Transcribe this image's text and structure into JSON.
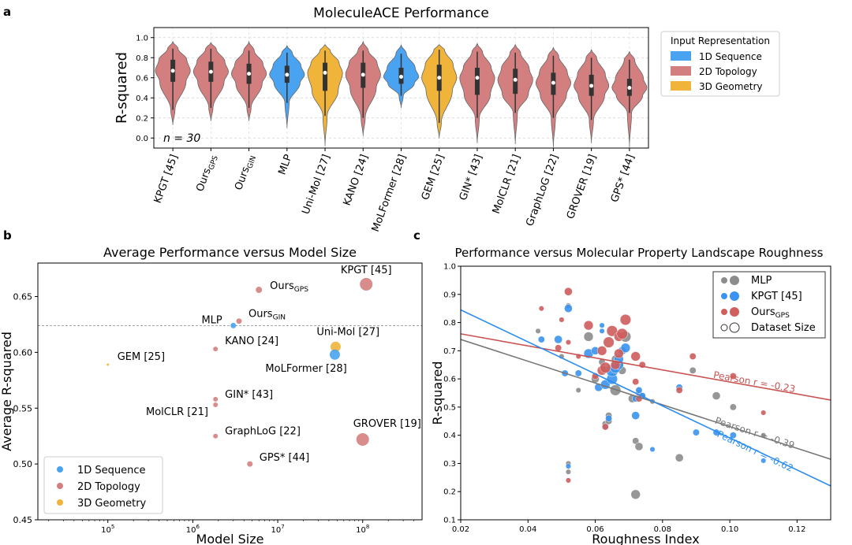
{
  "chart_data": [
    {
      "panel": "a",
      "type": "violin",
      "title": "MoleculeACE Performance",
      "ylabel": "R-squared",
      "ylim": [
        -0.1,
        1.1
      ],
      "yticks": [
        "0.0",
        "0.2",
        "0.4",
        "0.6",
        "0.8",
        "1.0"
      ],
      "annotation": "n = 30",
      "legend_title": "Input Representation",
      "legend": [
        {
          "label": "1D Sequence",
          "color": "#4aa3f0"
        },
        {
          "label": "2D Topology",
          "color": "#d47f7f"
        },
        {
          "label": "3D Geometry",
          "color": "#f0b43a"
        }
      ],
      "categories": [
        {
          "label": "KPGT [45]",
          "group": "2D Topology",
          "median": 0.67,
          "q1": 0.56,
          "q3": 0.78,
          "lo": 0.28,
          "hi": 0.89,
          "min": 0.13,
          "max": 0.96
        },
        {
          "label": "OursGPS",
          "base": "Ours",
          "sub": "GPS",
          "group": "2D Topology",
          "median": 0.66,
          "q1": 0.56,
          "q3": 0.76,
          "lo": 0.3,
          "hi": 0.89,
          "min": 0.17,
          "max": 0.95
        },
        {
          "label": "OursGIN",
          "base": "Ours",
          "sub": "GIN",
          "group": "2D Topology",
          "median": 0.64,
          "q1": 0.54,
          "q3": 0.74,
          "lo": 0.3,
          "hi": 0.87,
          "min": 0.17,
          "max": 0.96
        },
        {
          "label": "MLP",
          "group": "1D Sequence",
          "median": 0.63,
          "q1": 0.55,
          "q3": 0.72,
          "lo": 0.35,
          "hi": 0.85,
          "min": 0.1,
          "max": 0.92
        },
        {
          "label": "Uni-Mol [27]",
          "group": "3D Geometry",
          "median": 0.65,
          "q1": 0.47,
          "q3": 0.75,
          "lo": 0.22,
          "hi": 0.87,
          "min": -0.08,
          "max": 0.93
        },
        {
          "label": "KANO [24]",
          "group": "2D Topology",
          "median": 0.63,
          "q1": 0.5,
          "q3": 0.75,
          "lo": 0.2,
          "hi": 0.87,
          "min": 0.02,
          "max": 0.96
        },
        {
          "label": "MoLFormer [28]",
          "group": "1D Sequence",
          "median": 0.61,
          "q1": 0.54,
          "q3": 0.7,
          "lo": 0.42,
          "hi": 0.84,
          "min": 0.3,
          "max": 0.93
        },
        {
          "label": "GEM [25]",
          "group": "3D Geometry",
          "median": 0.6,
          "q1": 0.47,
          "q3": 0.73,
          "lo": 0.15,
          "hi": 0.88,
          "min": 0.0,
          "max": 0.93
        },
        {
          "label": "GIN* [43]",
          "group": "2D Topology",
          "median": 0.6,
          "q1": 0.43,
          "q3": 0.7,
          "lo": 0.2,
          "hi": 0.86,
          "min": -0.05,
          "max": 0.94
        },
        {
          "label": "MolCLR [21]",
          "group": "2D Topology",
          "median": 0.58,
          "q1": 0.44,
          "q3": 0.69,
          "lo": 0.25,
          "hi": 0.85,
          "min": -0.06,
          "max": 0.93
        },
        {
          "label": "GraphLoG [22]",
          "group": "2D Topology",
          "median": 0.55,
          "q1": 0.43,
          "q3": 0.65,
          "lo": 0.2,
          "hi": 0.82,
          "min": -0.09,
          "max": 0.9
        },
        {
          "label": "GROVER [19]",
          "group": "2D Topology",
          "median": 0.52,
          "q1": 0.42,
          "q3": 0.63,
          "lo": 0.18,
          "hi": 0.8,
          "min": -0.05,
          "max": 0.88
        },
        {
          "label": "GPS* [44]",
          "group": "2D Topology",
          "median": 0.5,
          "q1": 0.42,
          "q3": 0.59,
          "lo": 0.25,
          "hi": 0.78,
          "min": -0.09,
          "max": 0.86
        }
      ]
    },
    {
      "panel": "b",
      "type": "scatter",
      "title": "Average Performance versus Model Size",
      "xlabel": "Model Size",
      "ylabel": "Average R-squared",
      "xscale": "log",
      "xlim": [
        15000,
        500000000
      ],
      "ylim": [
        0.45,
        0.68
      ],
      "xticks": [
        {
          "base": "10",
          "exp": "5",
          "v": 100000
        },
        {
          "base": "10",
          "exp": "6",
          "v": 1000000
        },
        {
          "base": "10",
          "exp": "7",
          "v": 10000000
        },
        {
          "base": "10",
          "exp": "8",
          "v": 100000000
        }
      ],
      "yticks": [
        "0.45",
        "0.50",
        "0.55",
        "0.60",
        "0.65"
      ],
      "reference_line": 0.624,
      "legend": [
        {
          "label": "1D Sequence",
          "color": "#4aa3f0"
        },
        {
          "label": "2D Topology",
          "color": "#d47f7f"
        },
        {
          "label": "3D Geometry",
          "color": "#f0b43a"
        }
      ],
      "points": [
        {
          "label": "KPGT [45]",
          "size": 110000000,
          "r2": 0.661,
          "group": "2D Topology",
          "r": 8
        },
        {
          "label": "OursGPS",
          "base": "Ours",
          "sub": "GPS",
          "size": 6000000,
          "r2": 0.656,
          "group": "2D Topology",
          "r": 4
        },
        {
          "label": "OursGIN",
          "base": "Ours",
          "sub": "GIN",
          "size": 3500000,
          "r2": 0.628,
          "group": "2D Topology",
          "r": 3.5
        },
        {
          "label": "MLP",
          "size": 3000000,
          "r2": 0.624,
          "group": "1D Sequence",
          "r": 3.5
        },
        {
          "label": "Uni-Mol [27]",
          "size": 48000000,
          "r2": 0.605,
          "group": "3D Geometry",
          "r": 6.5
        },
        {
          "label": "MoLFormer [28]",
          "size": 47000000,
          "r2": 0.598,
          "group": "1D Sequence",
          "r": 6.5
        },
        {
          "label": "KANO [24]",
          "size": 1850000,
          "r2": 0.603,
          "group": "2D Topology",
          "r": 3
        },
        {
          "label": "GEM [25]",
          "size": 100000,
          "r2": 0.589,
          "group": "3D Geometry",
          "r": 1.5
        },
        {
          "label": "GIN* [43]",
          "size": 1850000,
          "r2": 0.558,
          "group": "2D Topology",
          "r": 3
        },
        {
          "label": "MolCLR [21]",
          "size": 1850000,
          "r2": 0.553,
          "group": "2D Topology",
          "r": 3
        },
        {
          "label": "GraphLoG [22]",
          "size": 1850000,
          "r2": 0.525,
          "group": "2D Topology",
          "r": 3
        },
        {
          "label": "GROVER [19]",
          "size": 100000000,
          "r2": 0.522,
          "group": "2D Topology",
          "r": 8
        },
        {
          "label": "GPS* [44]",
          "size": 4700000,
          "r2": 0.5,
          "group": "2D Topology",
          "r": 3.5
        }
      ]
    },
    {
      "panel": "c",
      "type": "scatter",
      "title": "Performance versus Molecular Property Landscape Roughness",
      "xlabel": "Roughness Index",
      "ylabel": "R-squared",
      "xlim": [
        0.02,
        0.13
      ],
      "ylim": [
        0.1,
        1.0
      ],
      "xticks": [
        "0.02",
        "0.04",
        "0.06",
        "0.08",
        "0.10",
        "0.12"
      ],
      "yticks": [
        "0.1",
        "0.2",
        "0.3",
        "0.4",
        "0.5",
        "0.6",
        "0.7",
        "0.8",
        "0.9",
        "1.0"
      ],
      "legend": [
        {
          "label": "MLP",
          "color": "#8c8c8c"
        },
        {
          "label": "KPGT [45]",
          "color": "#3a93f0"
        },
        {
          "label": "OursGPS",
          "base": "Ours",
          "sub": "GPS",
          "color": "#cf5e5e"
        },
        {
          "label": "Dataset Size",
          "color": "#ffffff"
        }
      ],
      "fits": [
        {
          "series": "OursGPS",
          "color": "#c95353",
          "x": [
            0.02,
            0.13
          ],
          "y": [
            0.76,
            0.525
          ],
          "label": "Pearson r = -0.23"
        },
        {
          "series": "MLP",
          "color": "#777777",
          "x": [
            0.02,
            0.13
          ],
          "y": [
            0.74,
            0.315
          ],
          "label": "Pearson r = -0.39"
        },
        {
          "series": "KPGT",
          "color": "#2b8cf0",
          "x": [
            0.02,
            0.13
          ],
          "y": [
            0.845,
            0.22
          ],
          "label": "Pearson r = -0.62"
        }
      ],
      "series": [
        {
          "name": "MLP",
          "color": "#8c8c8c",
          "points": [
            [
              0.043,
              0.77,
              2
            ],
            [
              0.052,
              0.86,
              2
            ],
            [
              0.052,
              0.3,
              2
            ],
            [
              0.052,
              0.27,
              2
            ],
            [
              0.055,
              0.56,
              2
            ],
            [
              0.058,
              0.75,
              5
            ],
            [
              0.06,
              0.6,
              4
            ],
            [
              0.062,
              0.66,
              3
            ],
            [
              0.063,
              0.44,
              3
            ],
            [
              0.064,
              0.47,
              3
            ],
            [
              0.064,
              0.45,
              3
            ],
            [
              0.066,
              0.56,
              6
            ],
            [
              0.066,
              0.67,
              4
            ],
            [
              0.067,
              0.65,
              5
            ],
            [
              0.068,
              0.63,
              4
            ],
            [
              0.069,
              0.75,
              6
            ],
            [
              0.071,
              0.53,
              4
            ],
            [
              0.072,
              0.38,
              3
            ],
            [
              0.073,
              0.36,
              4
            ],
            [
              0.072,
              0.19,
              5
            ],
            [
              0.073,
              0.55,
              3
            ],
            [
              0.074,
              0.54,
              3
            ],
            [
              0.077,
              0.52,
              2
            ],
            [
              0.085,
              0.32,
              4
            ],
            [
              0.089,
              0.63,
              3
            ],
            [
              0.096,
              0.54,
              4
            ],
            [
              0.101,
              0.5,
              3
            ],
            [
              0.11,
              0.4,
              2
            ],
            [
              0.05,
              0.68,
              2
            ]
          ]
        },
        {
          "name": "KPGT",
          "color": "#3a93f0",
          "points": [
            [
              0.044,
              0.74,
              3
            ],
            [
              0.049,
              0.74,
              4
            ],
            [
              0.051,
              0.62,
              3
            ],
            [
              0.052,
              0.85,
              4
            ],
            [
              0.052,
              0.29,
              2
            ],
            [
              0.055,
              0.62,
              3
            ],
            [
              0.058,
              0.69,
              5
            ],
            [
              0.06,
              0.7,
              4
            ],
            [
              0.061,
              0.57,
              4
            ],
            [
              0.062,
              0.79,
              2
            ],
            [
              0.062,
              0.77,
              2
            ],
            [
              0.063,
              0.58,
              5
            ],
            [
              0.063,
              0.43,
              2
            ],
            [
              0.064,
              0.46,
              3
            ],
            [
              0.065,
              0.6,
              6
            ],
            [
              0.065,
              0.63,
              7
            ],
            [
              0.066,
              0.64,
              6
            ],
            [
              0.067,
              0.65,
              5
            ],
            [
              0.067,
              0.67,
              5
            ],
            [
              0.068,
              0.7,
              4
            ],
            [
              0.069,
              0.71,
              5
            ],
            [
              0.072,
              0.47,
              4
            ],
            [
              0.072,
              0.53,
              3
            ],
            [
              0.073,
              0.56,
              3
            ],
            [
              0.074,
              0.54,
              3
            ],
            [
              0.077,
              0.35,
              2
            ],
            [
              0.085,
              0.57,
              3
            ],
            [
              0.09,
              0.41,
              3
            ],
            [
              0.096,
              0.41,
              3
            ],
            [
              0.101,
              0.4,
              3
            ],
            [
              0.11,
              0.31,
              2
            ]
          ]
        },
        {
          "name": "OursGPS",
          "color": "#cf5e5e",
          "points": [
            [
              0.044,
              0.85,
              2
            ],
            [
              0.049,
              0.71,
              3
            ],
            [
              0.05,
              0.81,
              2
            ],
            [
              0.052,
              0.73,
              2
            ],
            [
              0.052,
              0.91,
              4
            ],
            [
              0.052,
              0.24,
              2
            ],
            [
              0.055,
              0.68,
              2
            ],
            [
              0.058,
              0.79,
              5
            ],
            [
              0.06,
              0.61,
              3
            ],
            [
              0.062,
              0.63,
              5
            ],
            [
              0.062,
              0.7,
              5
            ],
            [
              0.063,
              0.64,
              6
            ],
            [
              0.063,
              0.43,
              3
            ],
            [
              0.064,
              0.73,
              6
            ],
            [
              0.065,
              0.77,
              6
            ],
            [
              0.066,
              0.65,
              5
            ],
            [
              0.067,
              0.69,
              5
            ],
            [
              0.067,
              0.75,
              5
            ],
            [
              0.068,
              0.76,
              6
            ],
            [
              0.069,
              0.81,
              6
            ],
            [
              0.072,
              0.68,
              5
            ],
            [
              0.072,
              0.59,
              3
            ],
            [
              0.073,
              0.53,
              3
            ],
            [
              0.074,
              0.65,
              3
            ],
            [
              0.085,
              0.56,
              3
            ],
            [
              0.089,
              0.68,
              3
            ],
            [
              0.101,
              0.61,
              3
            ],
            [
              0.11,
              0.48,
              2
            ]
          ]
        }
      ]
    }
  ],
  "panel_labels": {
    "a": "a",
    "b": "b",
    "c": "c"
  }
}
